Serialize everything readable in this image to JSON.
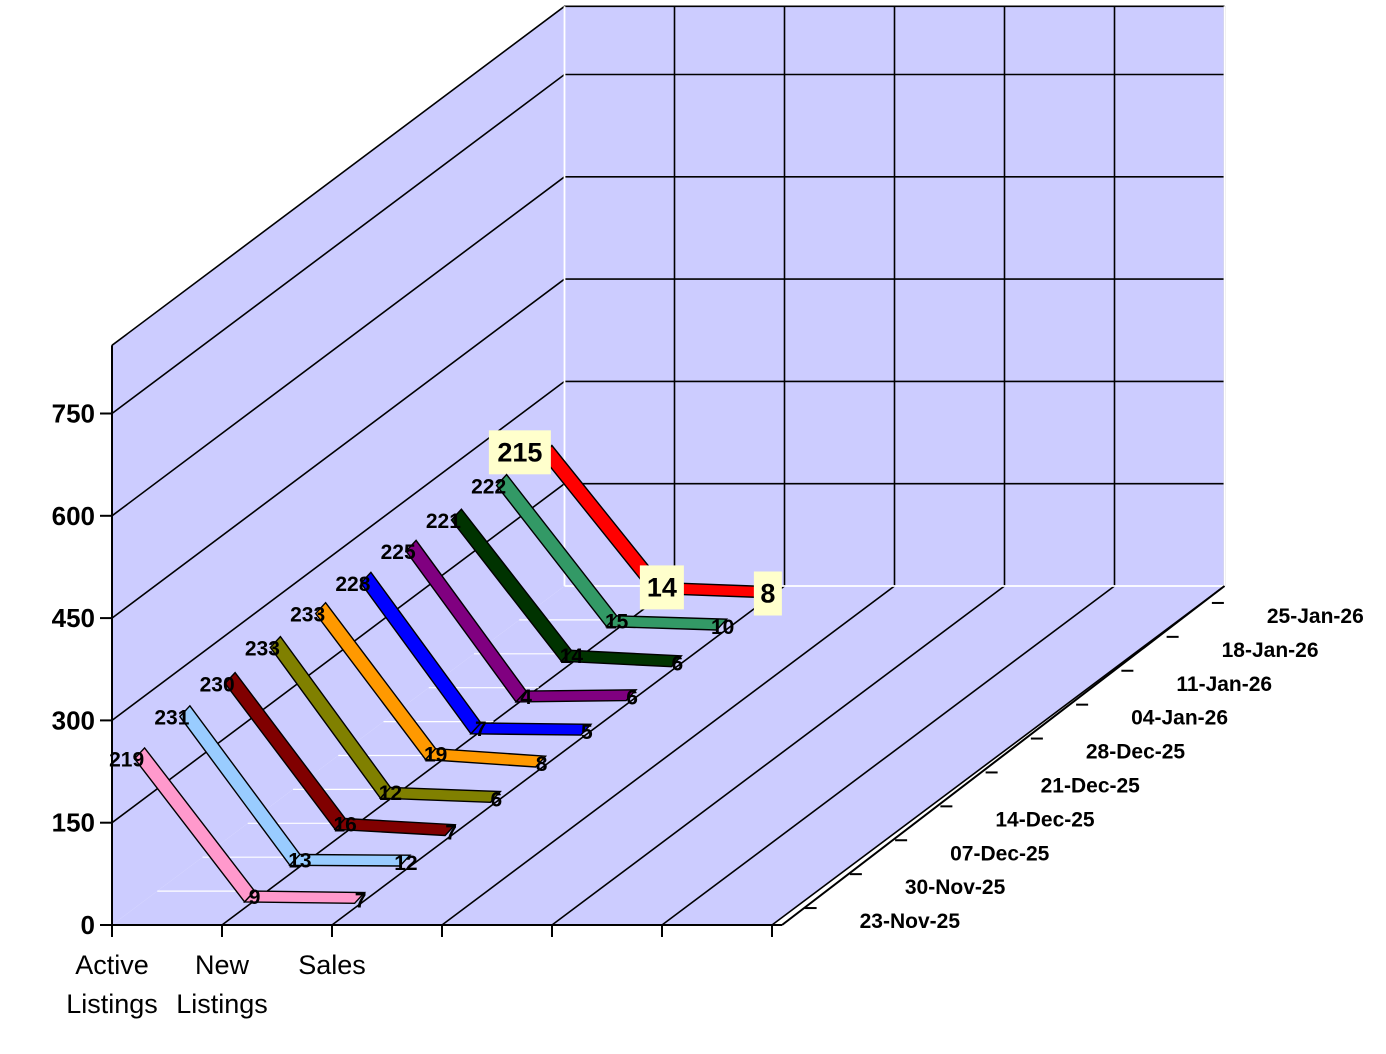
{
  "chart_data": {
    "type": "line",
    "title": "",
    "xlabel": "",
    "ylabel": "",
    "ylim": [
      0,
      850
    ],
    "yticks": [
      0,
      150,
      300,
      450,
      600,
      750
    ],
    "categories": [
      "Active Listings",
      "New Listings",
      "Sales"
    ],
    "category_labels": [
      [
        "Active",
        "Listings"
      ],
      [
        "New",
        "Listings"
      ],
      [
        "Sales"
      ]
    ],
    "dates": [
      "23-Nov-25",
      "30-Nov-25",
      "07-Dec-25",
      "14-Dec-25",
      "21-Dec-25",
      "28-Dec-25",
      "04-Jan-26",
      "11-Jan-26",
      "18-Jan-26",
      "25-Jan-26"
    ],
    "series": [
      {
        "date": "23-Nov-25",
        "values": [
          219,
          9,
          7
        ],
        "color": "#ff99cc"
      },
      {
        "date": "30-Nov-25",
        "values": [
          231,
          13,
          12
        ],
        "color": "#99ccff"
      },
      {
        "date": "07-Dec-25",
        "values": [
          230,
          16,
          7
        ],
        "color": "#800000"
      },
      {
        "date": "14-Dec-25",
        "values": [
          233,
          12,
          6
        ],
        "color": "#808000"
      },
      {
        "date": "21-Dec-25",
        "values": [
          233,
          19,
          8
        ],
        "color": "#ff9900"
      },
      {
        "date": "28-Dec-25",
        "values": [
          228,
          7,
          5
        ],
        "color": "#0000ff"
      },
      {
        "date": "04-Jan-26",
        "values": [
          225,
          4,
          6
        ],
        "color": "#800080"
      },
      {
        "date": "11-Jan-26",
        "values": [
          221,
          14,
          6
        ],
        "color": "#003300"
      },
      {
        "date": "18-Jan-26",
        "values": [
          222,
          15,
          10
        ],
        "color": "#339966"
      },
      {
        "date": "25-Jan-26",
        "values": [
          215,
          14,
          8
        ],
        "color": "#ff0000"
      }
    ],
    "highlighted_series": "25-Jan-26",
    "colors": {
      "wall": "#ccccff",
      "grid": "#000000",
      "floor_grid": "#ffffff",
      "highlight_box": "#ffffcc"
    },
    "grid": true
  }
}
